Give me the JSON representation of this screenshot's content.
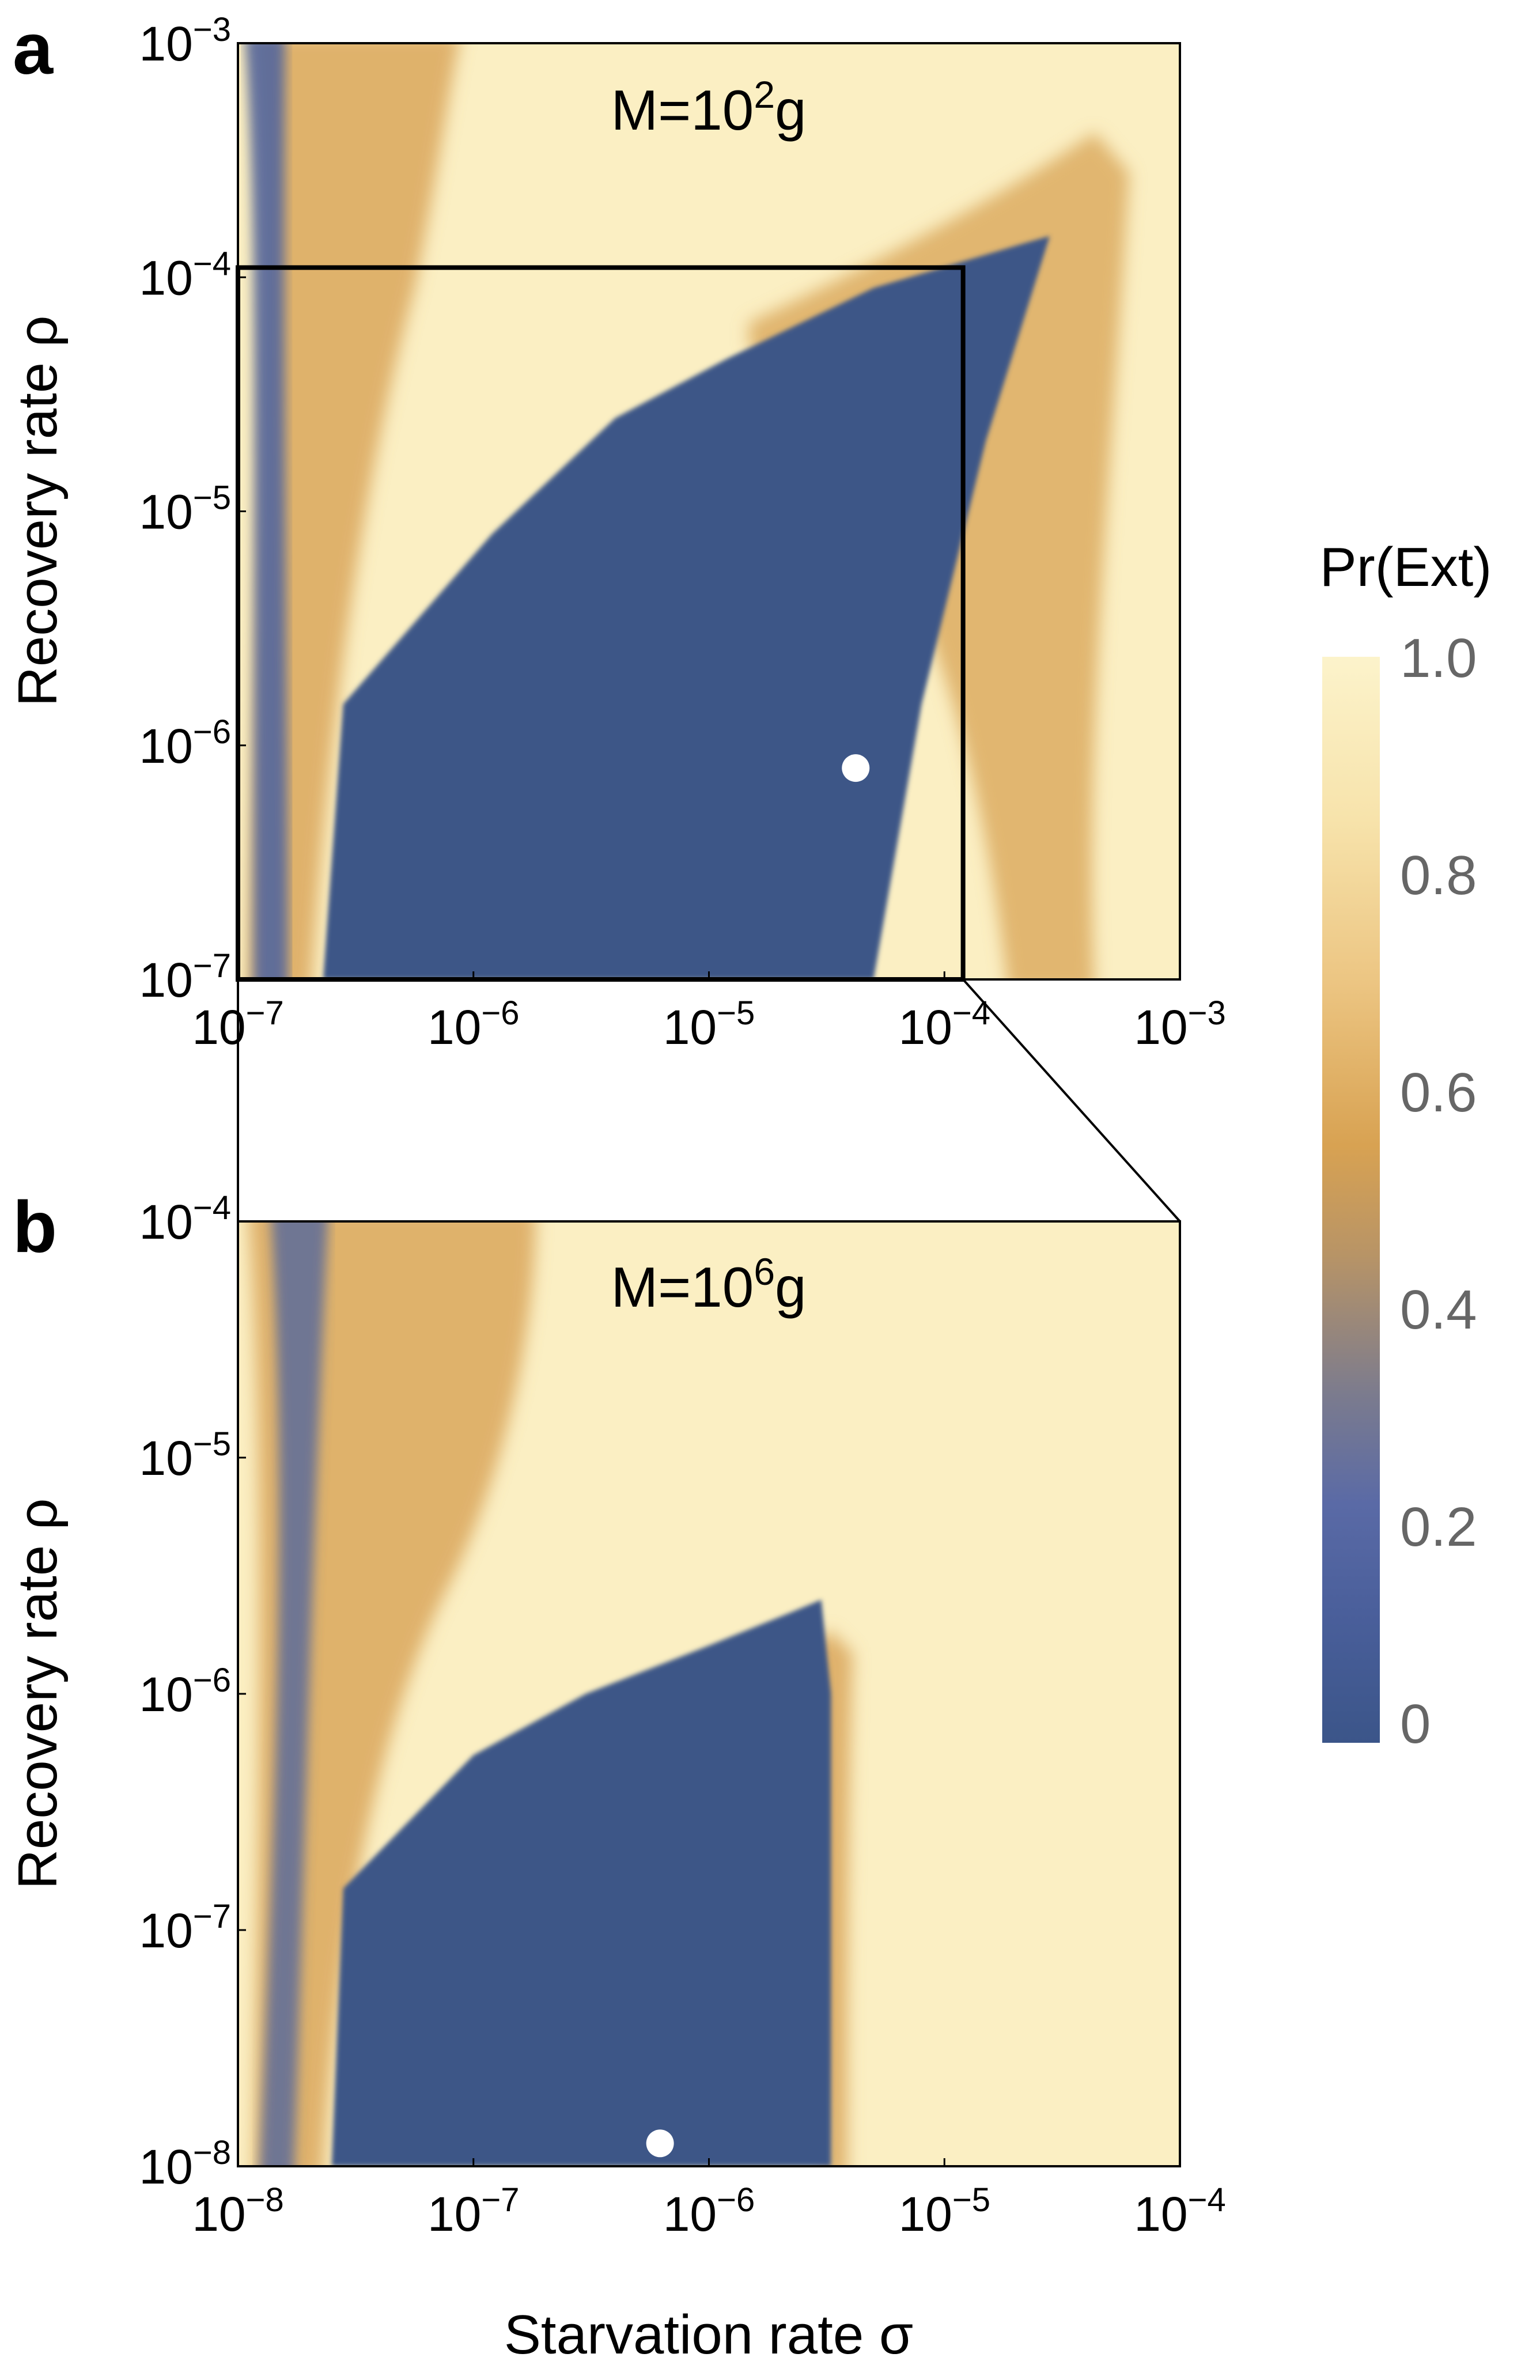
{
  "chart_data": [
    {
      "panel": "a",
      "type": "heatmap",
      "annotation": {
        "base": "M=10",
        "exponent": "2",
        "unit": "g"
      },
      "xlabel": "",
      "ylabel": "Recovery rate ρ",
      "xscale": "log",
      "yscale": "log",
      "xlim": [
        1e-07,
        0.001
      ],
      "ylim": [
        1e-07,
        0.001
      ],
      "xticks": [
        {
          "base": "10",
          "exp": "−7"
        },
        {
          "base": "10",
          "exp": "−6"
        },
        {
          "base": "10",
          "exp": "−5"
        },
        {
          "base": "10",
          "exp": "−4"
        },
        {
          "base": "10",
          "exp": "−3"
        }
      ],
      "yticks": [
        {
          "base": "10",
          "exp": "−7"
        },
        {
          "base": "10",
          "exp": "−6"
        },
        {
          "base": "10",
          "exp": "−5"
        },
        {
          "base": "10",
          "exp": "−4"
        },
        {
          "base": "10",
          "exp": "−3"
        }
      ],
      "marker": {
        "x": 4.2e-05,
        "y": 8e-07
      },
      "zoom_box": {
        "x": [
          1e-07,
          0.00012
        ],
        "y": [
          1e-07,
          0.00011
        ]
      },
      "low_region": [
        [
          2.3e-07,
          1e-07
        ],
        [
          2.8e-07,
          1.5e-06
        ],
        [
          1.2e-06,
          8e-06
        ],
        [
          4e-06,
          2.5e-05
        ],
        [
          1.2e-05,
          4.5e-05
        ],
        [
          5e-05,
          9e-05
        ],
        [
          0.00022,
          0.00014
        ],
        [
          0.00028,
          0.00015
        ],
        [
          0.00015,
          2e-05
        ],
        [
          8e-05,
          1.5e-06
        ],
        [
          5e-05,
          1e-07
        ]
      ]
    },
    {
      "panel": "b",
      "type": "heatmap",
      "annotation": {
        "base": "M=10",
        "exponent": "6",
        "unit": "g"
      },
      "xlabel": "Starvation rate σ",
      "ylabel": "Recovery rate ρ",
      "xscale": "log",
      "yscale": "log",
      "xlim": [
        1e-08,
        0.0001
      ],
      "ylim": [
        1e-08,
        0.0001
      ],
      "xticks": [
        {
          "base": "10",
          "exp": "−8"
        },
        {
          "base": "10",
          "exp": "−7"
        },
        {
          "base": "10",
          "exp": "−6"
        },
        {
          "base": "10",
          "exp": "−5"
        },
        {
          "base": "10",
          "exp": "−4"
        }
      ],
      "yticks": [
        {
          "base": "10",
          "exp": "−8"
        },
        {
          "base": "10",
          "exp": "−7"
        },
        {
          "base": "10",
          "exp": "−6"
        },
        {
          "base": "10",
          "exp": "−5"
        },
        {
          "base": "10",
          "exp": "−4"
        }
      ],
      "marker": {
        "x": 6.2e-07,
        "y": 1.25e-08
      },
      "low_region": [
        [
          2.5e-08,
          1e-08
        ],
        [
          2.8e-08,
          1.5e-07
        ],
        [
          1e-07,
          5.5e-07
        ],
        [
          3e-07,
          1e-06
        ],
        [
          1e-06,
          1.6e-06
        ],
        [
          2.2e-06,
          2.2e-06
        ],
        [
          3e-06,
          2.5e-06
        ],
        [
          3.3e-06,
          1e-06
        ],
        [
          3.3e-06,
          1e-07
        ],
        [
          3.3e-06,
          1e-08
        ]
      ]
    }
  ],
  "colorbar": {
    "title": "Pr(Ext)",
    "ticks": [
      "1.0",
      "0.8",
      "0.6",
      "0.4",
      "0.2",
      "0"
    ],
    "tick_values": [
      1.0,
      0.8,
      0.6,
      0.4,
      0.2,
      0.0
    ],
    "range": [
      0,
      1
    ],
    "colors": {
      "low": "#3b5589",
      "mid_low": "#5568a6",
      "mid": "#8a7f6c",
      "mid_high": "#d9a456",
      "high": "#fcf1c6"
    }
  },
  "colors": {
    "extinct": "#fbefc3",
    "band": "#d9a95c",
    "survive": "#3e5687",
    "marker": "#ffffff",
    "frame": "#000000"
  }
}
